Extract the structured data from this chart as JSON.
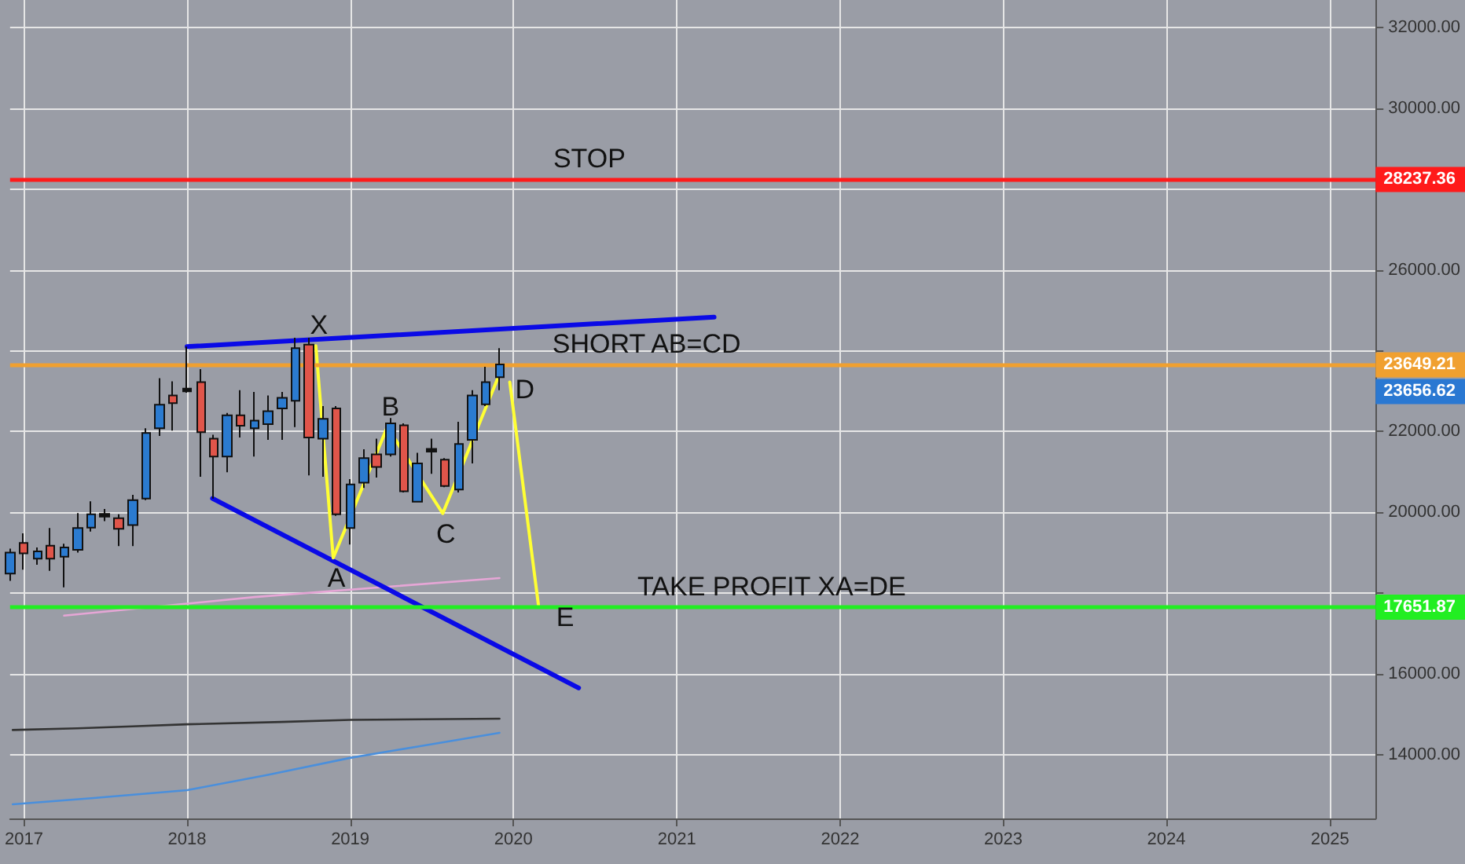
{
  "chart_data": {
    "type": "candlestick",
    "x": [
      "2016-12",
      "2017-01",
      "2017-02",
      "2017-03",
      "2017-04",
      "2017-05",
      "2017-06",
      "2017-07",
      "2017-08",
      "2017-09",
      "2017-10",
      "2017-11",
      "2017-12",
      "2018-01",
      "2018-02",
      "2018-03",
      "2018-04",
      "2018-05",
      "2018-06",
      "2018-07",
      "2018-08",
      "2018-09",
      "2018-10",
      "2018-11",
      "2018-12",
      "2019-01",
      "2019-02",
      "2019-03",
      "2019-04",
      "2019-05",
      "2019-06",
      "2019-07",
      "2019-08",
      "2019-09",
      "2019-10",
      "2019-11",
      "2019-12"
    ],
    "ohlc": [
      [
        18480,
        19100,
        18300,
        19000
      ],
      [
        19240,
        19480,
        18580,
        18980
      ],
      [
        18850,
        19130,
        18700,
        19030
      ],
      [
        19170,
        19610,
        18550,
        18850
      ],
      [
        18900,
        19220,
        18140,
        19130
      ],
      [
        19070,
        19980,
        19000,
        19610
      ],
      [
        19620,
        20270,
        19520,
        19950
      ],
      [
        19960,
        20080,
        19780,
        19890
      ],
      [
        19850,
        19950,
        19160,
        19590
      ],
      [
        19680,
        20430,
        19160,
        20300
      ],
      [
        20340,
        22080,
        20300,
        21960
      ],
      [
        22080,
        23320,
        21890,
        22660
      ],
      [
        22890,
        23240,
        22020,
        22700
      ],
      [
        23060,
        24100,
        22960,
        22990
      ],
      [
        23220,
        23540,
        20880,
        21980
      ],
      [
        21820,
        21920,
        20340,
        21380
      ],
      [
        21380,
        22460,
        20990,
        22400
      ],
      [
        22400,
        23020,
        21850,
        22140
      ],
      [
        22080,
        22980,
        21380,
        22270
      ],
      [
        22180,
        22890,
        21790,
        22500
      ],
      [
        22570,
        22980,
        21790,
        22830
      ],
      [
        22760,
        24320,
        22110,
        24060
      ],
      [
        24150,
        24320,
        20910,
        21850
      ],
      [
        21820,
        22630,
        20880,
        22310
      ],
      [
        22570,
        22630,
        19910,
        19950
      ],
      [
        19610,
        20820,
        19200,
        20690
      ],
      [
        20730,
        21560,
        20600,
        21340
      ],
      [
        21430,
        21820,
        20860,
        21120
      ],
      [
        21430,
        22330,
        21380,
        22200
      ],
      [
        22150,
        22200,
        20490,
        20520
      ],
      [
        20260,
        21470,
        20240,
        21210
      ],
      [
        21570,
        21820,
        20950,
        21500
      ],
      [
        21300,
        21340,
        20620,
        20650
      ],
      [
        20560,
        22240,
        20490,
        21690
      ],
      [
        21790,
        23020,
        21210,
        22890
      ],
      [
        22670,
        23600,
        22630,
        23220
      ],
      [
        23340,
        24060,
        23020,
        23656.62
      ]
    ],
    "colors": [
      "#2b7bd0",
      "#e0554a",
      "#2b7bd0",
      "#e0554a",
      "#2b7bd0",
      "#2b7bd0",
      "#2b7bd0",
      "#111111",
      "#e0554a",
      "#2b7bd0",
      "#2b7bd0",
      "#2b7bd0",
      "#e0554a",
      "#111111",
      "#e0554a",
      "#e0554a",
      "#2b7bd0",
      "#e0554a",
      "#2b7bd0",
      "#2b7bd0",
      "#2b7bd0",
      "#2b7bd0",
      "#e0554a",
      "#2b7bd0",
      "#e0554a",
      "#2b7bd0",
      "#2b7bd0",
      "#e0554a",
      "#2b7bd0",
      "#e0554a",
      "#2b7bd0",
      "#111111",
      "#e0554a",
      "#2b7bd0",
      "#2b7bd0",
      "#2b7bd0",
      "#2b7bd0"
    ],
    "series": [
      {
        "type": "line",
        "color": "#333333",
        "x": [
          "2016-12-07",
          "2017-05",
          "2017-09",
          "2018-01",
          "2018-08",
          "2019-01",
          "2019-12"
        ],
        "values": [
          14610,
          14650,
          14700,
          14750,
          14810,
          14860,
          14890
        ]
      },
      {
        "type": "line",
        "color": "#4a8fdc",
        "x": [
          "2016-12-07",
          "2017-06",
          "2018-01",
          "2018-07",
          "2019-01",
          "2019-06",
          "2019-12"
        ],
        "values": [
          12770,
          12920,
          13120,
          13500,
          13920,
          14200,
          14540
        ]
      },
      {
        "type": "line",
        "color": "#e6a6d6",
        "x": [
          "2017-04",
          "2018-06",
          "2019-12"
        ],
        "values": [
          17440,
          17900,
          18370
        ]
      },
      {
        "type": "line",
        "color": "#0a0ae6",
        "x": [
          "2018-01-01",
          "2021-03-25"
        ],
        "values": [
          24100,
          24830
        ]
      },
      {
        "type": "line",
        "color": "#0a0ae6",
        "x": [
          "2018-02-27",
          "2020-05-26"
        ],
        "values": [
          20340,
          15650
        ]
      },
      {
        "type": "line",
        "color": "#ffff33",
        "x": [
          "2018-10-16",
          "2018-11-24",
          "2019-03-25",
          "2019-07-27",
          "2019-11-28"
        ],
        "values": [
          24120,
          18870,
          22110,
          19970,
          23340
        ]
      },
      {
        "type": "line",
        "color": "#ffff33",
        "x": [
          "2019-12-24",
          "2020-02-26"
        ],
        "values": [
          23220,
          17710
        ]
      }
    ],
    "ref_lines": [
      {
        "axis": "y",
        "value": 28237.36,
        "label": "28237.36",
        "color": "#ff1a1a"
      },
      {
        "axis": "y",
        "value": 23649.21,
        "label": "23649.21",
        "color": "#f0a030"
      },
      {
        "axis": "y",
        "value": 17651.87,
        "label": "17651.87",
        "color": "#22ee22"
      }
    ],
    "annotations": [
      {
        "text": "X",
        "x": "2018-10-16",
        "y": 24120
      },
      {
        "text": "A",
        "x": "2018-11-24",
        "y": 18870
      },
      {
        "text": "B",
        "x": "2019-03-25",
        "y": 22110
      },
      {
        "text": "C",
        "x": "2019-07-27",
        "y": 19970
      },
      {
        "text": "D",
        "x": "2019-11-28",
        "y": 23340
      },
      {
        "text": "E",
        "x": "2020-02-26",
        "y": 17710
      },
      {
        "text": "STOP",
        "x": "2020-06-12",
        "y": 28237.36
      },
      {
        "text": "SHORT AB=CD",
        "x": "2020-10-18",
        "y": 23649.21
      },
      {
        "text": "TAKE PROFIT XA=DE",
        "x": "2021-07-25",
        "y": 17651.87
      },
      "23656.62"
    ],
    "xlim": [
      "2016-12-01",
      "2025-04-13"
    ],
    "xticks": [
      {
        "value": "2017-01-01",
        "label": "2017"
      },
      {
        "value": "2018-01-01",
        "label": "2018"
      },
      {
        "value": "2019-01-01",
        "label": "2019"
      },
      {
        "value": "2020-01-01",
        "label": "2020"
      },
      {
        "value": "2021-01-01",
        "label": "2021"
      },
      {
        "value": "2022-01-01",
        "label": "2022"
      },
      {
        "value": "2023-01-01",
        "label": "2023"
      },
      {
        "value": "2024-01-01",
        "label": "2024"
      },
      {
        "value": "2025-01-01",
        "label": "2025"
      }
    ],
    "ylim": [
      12420,
      32680
    ],
    "yticks": [
      {
        "value": 14000,
        "label": "14000.00"
      },
      {
        "value": 16000,
        "label": "16000.00"
      },
      {
        "value": 18000,
        "label": null
      },
      {
        "value": 20000,
        "label": "20000.00"
      },
      {
        "value": 22000,
        "label": "22000.00"
      },
      {
        "value": 24000,
        "label": null
      },
      {
        "value": 26000,
        "label": "26000.00"
      },
      {
        "value": 28000,
        "label": null
      },
      {
        "value": 30000,
        "label": "30000.00"
      },
      {
        "value": 32000,
        "label": "32000.00"
      }
    ],
    "grid": true,
    "marker": "none",
    "line_style": "solid"
  }
}
